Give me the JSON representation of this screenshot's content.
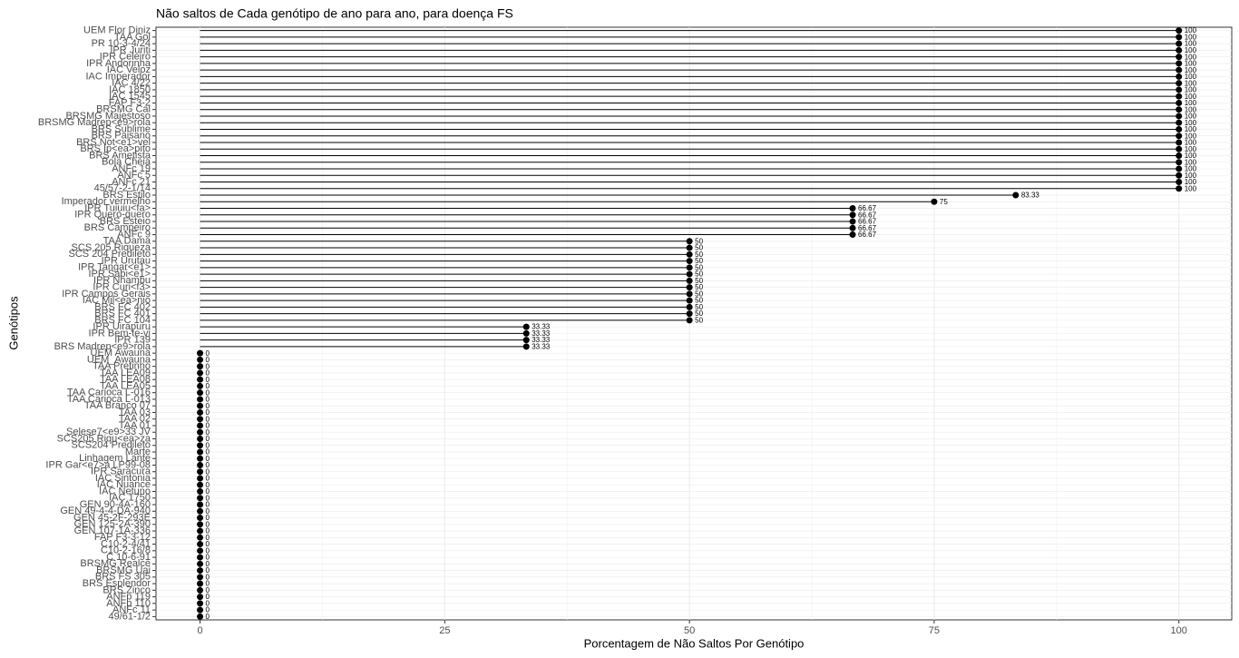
{
  "chart_data": {
    "type": "lollipop",
    "title": "Não saltos de Cada genótipo de ano para ano, para doença FS",
    "x_label": "Porcentagem de Não Saltos Por Genótipo",
    "y_label": "Genótipos",
    "color": "#000000",
    "grid": true,
    "xlim": [
      -4.5,
      105.4
    ],
    "xticks": [
      0,
      25,
      50,
      75,
      100
    ],
    "categories": [
      "UEM Flor Diniz",
      "TAA Gol",
      "PR 10-3-4/24",
      "IPR Juriti",
      "IPR Celeiro",
      "IPR Andorinha",
      "IAC Veloz",
      "IAC Imperador",
      "IAC 4/22",
      "IAC 1850",
      "IAC 1545",
      "FAP F3-2",
      "BRSMG Cal",
      "BRSMG Majestoso",
      "BRSMG Madrep<e9>rola",
      "BRS Sublime",
      "BRS Paisano",
      "BRS Not<e1>vel",
      "BRS Ip<ea>pito",
      "BRS Ametista",
      "Bola Cheia",
      "ANFc 19",
      "ANFc 5",
      "ANFc 21",
      "45/57-2-1/14",
      "BRS Estilo",
      "Imperador vermelho",
      "IPR Tuiuiu<fa>",
      "IPR Quero-quero",
      "BRS Esteio",
      "BRS Campeiro",
      "ANFc 9",
      "TAA Dama",
      "SCS 205 Riqueza",
      "SCS 204 Predileto",
      "IPR Urutau",
      "IPR Tangar<e1>",
      "IPR Sabi<e1>",
      "IPR Nhambu",
      "IPR Curi<f3>",
      "IPR Campos Gerais",
      "IAC Mil<ea>nio",
      "BRS FC 402",
      "BRS FC 401",
      "BRS FC 104",
      "IPR Uirapuru",
      "IPR Bem-te-vi",
      "IPR 139",
      "BRS Madrep<e9>rola",
      "UEM Awauna",
      "UEM_Awauna",
      "TAA Pretinho",
      "TAA LEA09",
      "TAA LEA08",
      "TAA LEA05",
      "TAA Carioca L-016",
      "TAA Carioca L-013",
      "TAA Branco 07",
      "TAA 03",
      "TAA 02",
      "TAA 01",
      "Selese7<e9>33 JV",
      "SCS205 Riqu<ea>za",
      "SCS204 Predileto",
      "Marte",
      "Linhagem Lante",
      "IPR Gar<e7>a LP99-08",
      "IPR Saracura",
      "IAC Sintonia",
      "IAC Nuance",
      "IAC Netuno",
      "IAC 1750",
      "GEN 90-4A-160",
      "GEN 49-4-4-DA-940",
      "GEN 45-2F-293E",
      "GEN 125-2A-390",
      "GEN 107-1A-336",
      "FAP F3-3-12",
      "C10-2-4/41",
      "C10-2-16/8",
      "C 10-6-91",
      "BRSMG Realce",
      "BRSMG Uai",
      "BRS FS 305",
      "BRS Esplendor",
      "BRS Zinco",
      "ANFp 119",
      "ANFp 110",
      "ANFc 11",
      "49/61-1/2"
    ],
    "values": [
      100,
      100,
      100,
      100,
      100,
      100,
      100,
      100,
      100,
      100,
      100,
      100,
      100,
      100,
      100,
      100,
      100,
      100,
      100,
      100,
      100,
      100,
      100,
      100,
      100,
      83.33,
      75,
      66.67,
      66.67,
      66.67,
      66.67,
      66.67,
      50,
      50,
      50,
      50,
      50,
      50,
      50,
      50,
      50,
      50,
      50,
      50,
      50,
      33.33,
      33.33,
      33.33,
      33.33,
      0,
      0,
      0,
      0,
      0,
      0,
      0,
      0,
      0,
      0,
      0,
      0,
      0,
      0,
      0,
      0,
      0,
      0,
      0,
      0,
      0,
      0,
      0,
      0,
      0,
      0,
      0,
      0,
      0,
      0,
      0,
      0,
      0,
      0,
      0,
      0,
      0,
      0,
      0,
      0,
      0
    ]
  }
}
